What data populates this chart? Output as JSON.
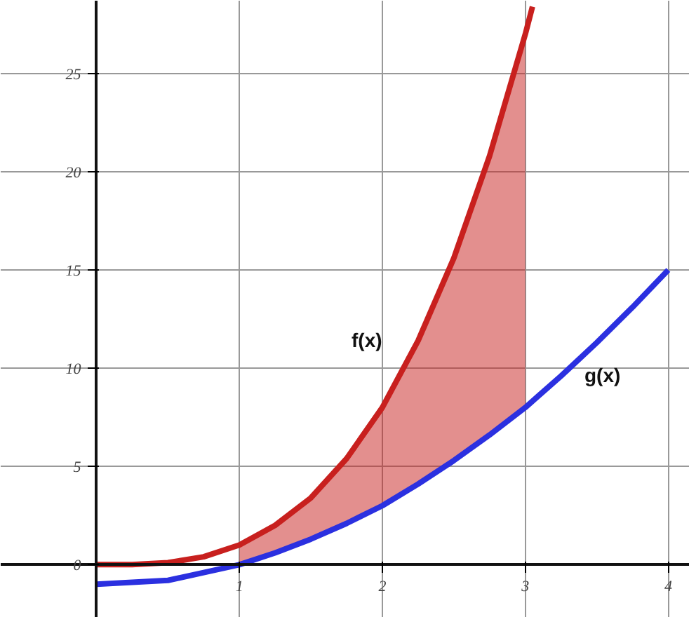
{
  "chart_data": {
    "type": "line",
    "xlim": [
      -0.67,
      4.15
    ],
    "ylim": [
      -2.7,
      28.7
    ],
    "xticks": [
      1,
      2,
      3,
      4
    ],
    "yticks": [
      0,
      5,
      10,
      15,
      20,
      25
    ],
    "grid": true,
    "series": [
      {
        "color": "#c8201e",
        "x": [
          0,
          0.25,
          0.5,
          0.75,
          1,
          1.25,
          1.5,
          1.75,
          2,
          2.25,
          2.5,
          2.75,
          3,
          3.05
        ],
        "values": [
          0,
          0,
          0.1,
          0.4,
          1,
          2,
          3.4,
          5.4,
          8,
          11.4,
          15.6,
          20.8,
          27,
          28.4
        ],
        "lower": [
          null,
          null,
          null,
          null,
          0,
          0.6,
          1.3,
          2.1,
          3,
          4.1,
          5.3,
          6.6,
          8,
          null
        ],
        "upper": [
          null,
          null,
          null,
          null,
          1,
          2,
          3.4,
          5.4,
          8,
          11.4,
          15.6,
          20.8,
          27,
          null
        ]
      },
      {
        "color": "#2b30e0",
        "x": [
          0,
          0.25,
          0.5,
          0.75,
          1,
          1.25,
          1.5,
          1.75,
          2,
          2.25,
          2.5,
          2.75,
          3,
          3.25,
          3.5,
          3.75,
          4
        ],
        "values": [
          -1,
          -0.9,
          -0.8,
          -0.4,
          0,
          0.6,
          1.3,
          2.1,
          3,
          4.1,
          5.3,
          6.6,
          8,
          9.6,
          11.3,
          13.1,
          15
        ]
      }
    ],
    "annotations": [
      "f(x)",
      "g(x)"
    ]
  }
}
